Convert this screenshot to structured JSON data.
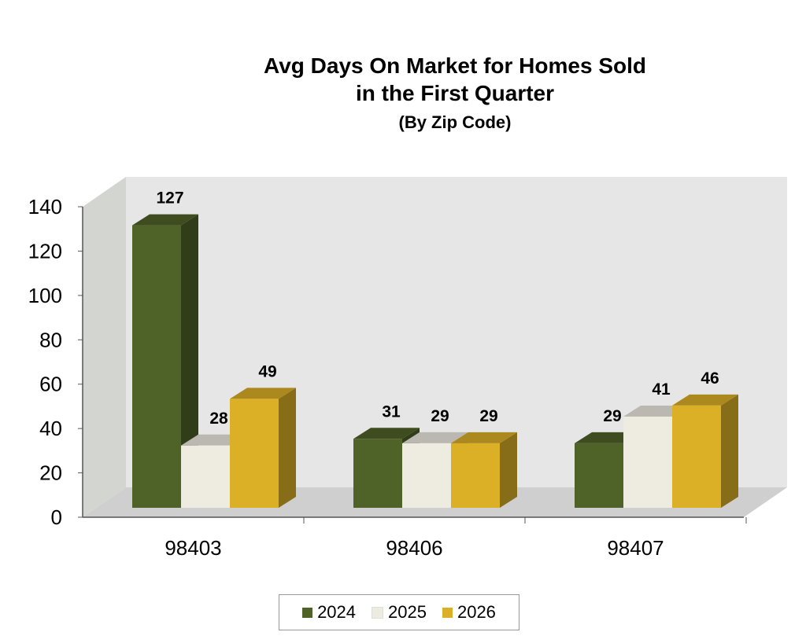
{
  "chart_data": {
    "type": "bar",
    "title": "Avg Days On Market for Homes Sold",
    "title_line2": "in the First Quarter",
    "subtitle": "(By Zip Code)",
    "categories": [
      "98403",
      "98406",
      "98407"
    ],
    "series": [
      {
        "name": "2024",
        "values": [
          127,
          31,
          29
        ],
        "color": "#4f6228"
      },
      {
        "name": "2025",
        "values": [
          28,
          29,
          41
        ],
        "color": "#eeece1"
      },
      {
        "name": "2026",
        "values": [
          49,
          29,
          46
        ],
        "color": "#dcb026"
      }
    ],
    "ylim": [
      0,
      140
    ],
    "yticks": [
      0,
      20,
      40,
      60,
      80,
      100,
      120,
      140
    ],
    "grid": false,
    "style": "3d",
    "legend_placement": "bottom",
    "data_labels": true
  }
}
